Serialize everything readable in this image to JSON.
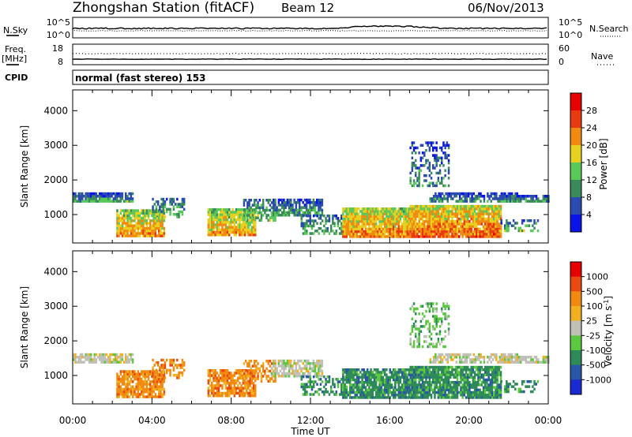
{
  "header": {
    "station": "Zhongshan Station (fitACF)",
    "beam": "Beam 12",
    "date": "06/Nov/2013",
    "cpid_label": "CPID",
    "cpid_value": "normal (fast stereo) 153"
  },
  "noise_panel": {
    "left_label": "N.Sky",
    "right_label": "N.Search",
    "left_ticks": [
      "10^5",
      "10^0"
    ],
    "right_ticks": [
      "10^5",
      "10^0"
    ]
  },
  "freq_panel": {
    "left_label_1": "Freq.",
    "left_label_2": "[MHz]",
    "right_label": "Nave",
    "left_ticks": [
      "18",
      "8"
    ],
    "right_ticks": [
      "60",
      "0"
    ]
  },
  "chart_data": [
    {
      "type": "heatmap",
      "name": "power",
      "ylabel": "Slant Range [km]",
      "xlabel": "Time UT",
      "x_ticks": [
        "00:00",
        "04:00",
        "08:00",
        "12:00",
        "16:00",
        "20:00",
        "00:00"
      ],
      "y_ticks": [
        1000,
        2000,
        3000,
        4000
      ],
      "ylim": [
        180,
        4600
      ],
      "xlim_hours": [
        0,
        24
      ],
      "colorbar": {
        "label": "Power [dB]",
        "ticks": [
          "4",
          "8",
          "12",
          "16",
          "20",
          "24",
          "28"
        ],
        "colors": [
          "#0a14e6",
          "#2b4bb0",
          "#3a8a5a",
          "#5bc85a",
          "#e8d020",
          "#f08a10",
          "#e83a10",
          "#e60000"
        ]
      }
    },
    {
      "type": "heatmap",
      "name": "velocity",
      "ylabel": "Slant Range [km]",
      "xlabel": "Time UT",
      "x_ticks": [
        "00:00",
        "04:00",
        "08:00",
        "12:00",
        "16:00",
        "20:00",
        "00:00"
      ],
      "y_ticks": [
        1000,
        2000,
        3000,
        4000
      ],
      "ylim": [
        180,
        4600
      ],
      "xlim_hours": [
        0,
        24
      ],
      "colorbar": {
        "label": "Velocity [m s^-1]",
        "ticks": [
          "1000",
          "500",
          "100",
          "25",
          "-25",
          "-100",
          "-500",
          "-1000"
        ],
        "colors": [
          "#1a2ad0",
          "#2a56a8",
          "#2e8a58",
          "#5cc840",
          "#c0c0b8",
          "#f0b020",
          "#f08a10",
          "#e84a10",
          "#e60000"
        ]
      }
    }
  ],
  "x_axis_title": "Time UT"
}
